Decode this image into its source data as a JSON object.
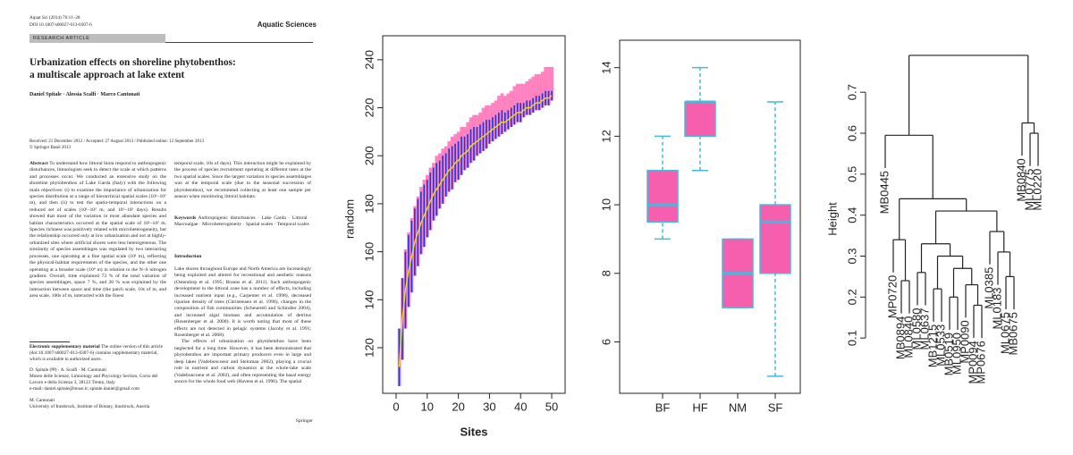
{
  "paper": {
    "header": {
      "journal_ref": "Aquat Sci (2014) 76:11–28",
      "doi": "DOI 10.1007/s00027-013-0307-6",
      "journal": "Aquatic Sciences",
      "section": "RESEARCH ARTICLE"
    },
    "title_lines": [
      "Urbanization effects on shoreline phytobenthos:",
      "a multiscale approach at lake extent"
    ],
    "authors": "Daniel Spitale · Alessia Scalfi · Marco Cantonati",
    "received": "Received: 21 December 2012 / Accepted: 27 August 2013 / Published online: 12 September 2013",
    "copyright": "© Springer Basel 2013",
    "abstract": {
      "label": "Abstract",
      "text": "To understand how littoral biota respond to anthropogenic disturbances, limnologists seek to detect the scale at which patterns and processes occur. We conducted an extensive study on the shoreline phytobenthos of Lake Garda (Italy) with the following main objectives: (i) to examine the importance of urbanization for species distribution at a range of hierarchical spatial scales (10¹–10⁵ m), and then (ii) to test the spatio-temporal interactions on a reduced set of scales (10¹–10² m, and 10¹–10² days). Results showed that most of the variation in most abundant species and habitat characteristics occurred at the spatial scale of 10¹–10² m. Species richness was positively related with microheterogeneity, but the relationship occurred only at low urbanization and not at highly-urbanized sites where artificial shores were less heterogeneous. The similarity of species assemblages was regulated by two interacting processes, one operating at a fine spatial scale (10¹ m), reflecting the physical-habitat requirements of the species, and the other one operating at a broader scale (10⁴ m) in relation to the N–S nitrogen gradient. Overall, time explained 73 % of the total variation of species assemblages, space 7 %, and 20 % was explained by the interaction between space and time (the patch scale, 10s of m, and area scale, 100s of m, interacted with the finest",
      "text_continued": "temporal scale, 10s of days). This interaction might be explained by the process of species recruitment operating at different rates at the two spatial scales. Since the largest variation in species assemblages was at the temporal scale (due to the seasonal succession of phytobenthos), we recommend collecting at least one sample per season when monitoring littoral habitats."
    },
    "keywords": {
      "label": "Keywords",
      "text": "Anthropogenic disturbances · Lake Garda · Littoral · Macroalgae · Microheterogeneity · Spatial scales · Temporal scales"
    },
    "introduction": {
      "heading": "Introduction",
      "paragraphs": [
        "Lake shores throughout Europe and North America are increasingly being exploited and altered for recreational and aesthetic reasons (Ostendorp et al. 1995; Brauns et al. 2011). Such anthropogenic development in the littoral zone has a number of effects, including increased nutrient input (e.g., Carpenter et al. 1998), decreased riparian density of trees (Christensen et al. 1996), changes in the composition of fish communities (Scheuerell and Schindler 2004), and increased algal biomass and accumulation of detritus (Rosenberger et al. 2008). It is worth noting that most of these effects are not detected in pelagic systems (Jacoby et al. 1991; Rosenberger et al. 2008).",
        "The effects of urbanization on phytobenthos have been neglected for a long time. However, it has been demonstrated that phytobenthos are important primary producers even in large and deep lakes (Vadeboncoeur and Steinman 2002), playing a crucial role in nutrient and carbon dynamics at the whole-lake scale (Vadeboncoeur et al. 2002), and often representing the basal energy source for the whole food web (Havens et al. 1996). The spatial"
      ]
    },
    "esm": {
      "label": "Electronic supplementary material",
      "text": "The online version of this article (doi:10.1007/s00027-013-0307-6) contains supplementary material, which is available to authorized users."
    },
    "affiliations": [
      "D. Spitale (✉) · A. Scalfi · M. Cantonati",
      "Museo delle Scienze, Limnology and Phycology Section, Corso del Lavoro e della Scienza 3, 38123 Trento, Italy",
      "e-mail: daniel.spitale@muse.it; spitale.daniel@gmail.com",
      "M. Cantonati",
      "University of Innsbruck, Institute of Botany, Innsbruck, Austria"
    ],
    "publisher": "Springer"
  },
  "chart_data": [
    {
      "type": "band",
      "xlabel": "Sites",
      "ylabel": "random",
      "x": [
        1,
        2,
        3,
        4,
        5,
        6,
        7,
        8,
        9,
        10,
        11,
        12,
        13,
        14,
        15,
        16,
        17,
        18,
        19,
        20,
        21,
        22,
        23,
        24,
        25,
        26,
        27,
        28,
        29,
        30,
        31,
        32,
        33,
        34,
        35,
        36,
        37,
        38,
        39,
        40,
        41,
        42,
        43,
        44,
        45,
        46,
        47,
        48,
        49,
        50
      ],
      "mean": [
        112,
        132,
        144,
        152,
        158,
        164,
        168,
        172,
        175,
        178,
        181,
        184,
        186,
        188,
        190,
        192,
        194,
        195,
        197,
        198,
        200,
        201,
        202,
        204,
        205,
        206,
        207,
        208,
        209,
        210,
        211,
        212,
        213,
        214,
        214,
        215,
        216,
        217,
        218,
        218,
        219,
        220,
        220,
        221,
        222,
        222,
        223,
        224,
        224,
        225
      ],
      "low": [
        104,
        115,
        128,
        137,
        143,
        150,
        154,
        159,
        162,
        166,
        169,
        173,
        175,
        178,
        180,
        183,
        185,
        186,
        189,
        190,
        192,
        194,
        195,
        197,
        198,
        200,
        201,
        202,
        203,
        205,
        206,
        207,
        208,
        209,
        210,
        211,
        212,
        213,
        214,
        214,
        216,
        217,
        217,
        218,
        219,
        219,
        220,
        221,
        221,
        223
      ],
      "high": [
        128,
        149,
        160,
        167,
        173,
        178,
        182,
        185,
        188,
        190,
        193,
        195,
        197,
        198,
        200,
        201,
        203,
        204,
        205,
        206,
        208,
        208,
        209,
        211,
        212,
        212,
        213,
        214,
        215,
        215,
        216,
        217,
        218,
        219,
        218,
        219,
        220,
        221,
        222,
        222,
        222,
        223,
        223,
        224,
        225,
        225,
        226,
        227,
        227,
        227
      ],
      "band_high": [
        128,
        149,
        161,
        168,
        174,
        179,
        183,
        187,
        190,
        192,
        195,
        197,
        200,
        201,
        203,
        204,
        206,
        208,
        209,
        210,
        212,
        212,
        214,
        216,
        217,
        217,
        218,
        220,
        221,
        221,
        222,
        223,
        225,
        226,
        225,
        226,
        227,
        229,
        230,
        230,
        230,
        231,
        232,
        233,
        234,
        234,
        235,
        237,
        237,
        237
      ],
      "colors": {
        "band": "#ff6fb5",
        "whisker": "#1f35d6",
        "mean": "#e6e21a"
      },
      "xlim": [
        -4.3,
        54.3
      ],
      "ylim": [
        101,
        250
      ],
      "xticks": [
        0,
        10,
        20,
        30,
        40,
        50
      ],
      "yticks": [
        120,
        140,
        160,
        180,
        200,
        220,
        240
      ]
    },
    {
      "type": "boxplot",
      "categories": [
        "BF",
        "HF",
        "NM",
        "SF"
      ],
      "min": [
        9,
        11,
        7,
        5
      ],
      "q1": [
        9.5,
        12,
        7,
        8
      ],
      "median": [
        10,
        13,
        8,
        9.5
      ],
      "q3": [
        11,
        13,
        9,
        10
      ],
      "max": [
        12,
        14,
        9,
        13
      ],
      "fill": "#f55fae",
      "border": "#46b9de",
      "ylim": [
        4.5,
        14.8
      ],
      "yticks": [
        6,
        8,
        10,
        12,
        14
      ]
    },
    {
      "type": "dendrogram",
      "ylabel": "Height",
      "labels": [
        "MB0445",
        "MP0720",
        "MB0894",
        "ML0840",
        "ML0580",
        "ML0637",
        "MB1215",
        "ML0533",
        "MB0519",
        "ML0950",
        "MP0090",
        "MP0094",
        "MP0676",
        "ML0385",
        "ML0183",
        "ML0675",
        "MB0675",
        "MB0840",
        "ML0775",
        "ML0220"
      ],
      "merge": [
        [
          -12,
          -13
        ],
        [
          -9,
          -10
        ],
        [
          -7,
          -8
        ],
        [
          -11,
          1
        ],
        [
          -3,
          -4
        ],
        [
          -16,
          -17
        ],
        [
          -5,
          -6
        ],
        [
          2,
          4
        ],
        [
          3,
          8
        ],
        [
          -15,
          6
        ],
        [
          7,
          9
        ],
        [
          -2,
          5
        ],
        [
          -14,
          10
        ],
        [
          11,
          13
        ],
        [
          12,
          14
        ],
        [
          -1,
          15
        ],
        [
          -19,
          -20
        ],
        [
          -18,
          17
        ],
        [
          16,
          18
        ]
      ],
      "height": [
        0.18,
        0.2,
        0.22,
        0.23,
        0.24,
        0.25,
        0.26,
        0.27,
        0.3,
        0.31,
        0.33,
        0.34,
        0.36,
        0.41,
        0.44,
        0.595,
        0.6,
        0.625,
        0.79
      ],
      "ylim": [
        -0.035,
        0.827
      ],
      "yticks": [
        0.1,
        0.2,
        0.3,
        0.4,
        0.5,
        0.6,
        0.7
      ]
    }
  ]
}
